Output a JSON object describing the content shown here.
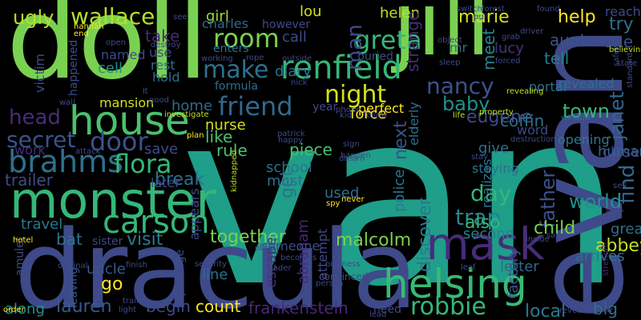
{
  "words": [
    {
      "text": "van",
      "color": "#1f9e89"
    },
    {
      "text": "doll",
      "color": "#7ad151"
    },
    {
      "text": "jill",
      "color": "#7ad151"
    },
    {
      "text": "dracula",
      "color": "#3e4a89"
    },
    {
      "text": "evan",
      "color": "#3e4a89"
    },
    {
      "text": "monster",
      "color": "#35b779"
    },
    {
      "text": "house",
      "color": "#4ac16d"
    },
    {
      "text": "helsing",
      "color": "#38b977"
    },
    {
      "text": "renfield",
      "color": "#35b779"
    },
    {
      "text": "mask",
      "color": "#472c7a"
    },
    {
      "text": "carson",
      "color": "#35b779"
    },
    {
      "text": "brahms",
      "color": "#2d708e"
    },
    {
      "text": "flora",
      "color": "#35b779"
    },
    {
      "text": "door",
      "color": "#3b528b"
    },
    {
      "text": "friend",
      "color": "#31688e"
    },
    {
      "text": "secret",
      "color": "#3b528b"
    },
    {
      "text": "night",
      "color": "#d2e21b"
    },
    {
      "text": "wallace",
      "color": "#b5de2b"
    },
    {
      "text": "room",
      "color": "#7ad151"
    },
    {
      "text": "make",
      "color": "#2d708e"
    },
    {
      "text": "nancy",
      "color": "#3b528b"
    },
    {
      "text": "greta",
      "color": "#35b779"
    },
    {
      "text": "robbie",
      "color": "#35b779"
    },
    {
      "text": "lauren",
      "color": "#38598c"
    },
    {
      "text": "frankenstein",
      "color": "#482878"
    },
    {
      "text": "head",
      "color": "#472c7a"
    },
    {
      "text": "baby",
      "color": "#21918c"
    },
    {
      "text": "eugene",
      "color": "#3e4a89"
    },
    {
      "text": "janet",
      "color": "#31688e"
    },
    {
      "text": "find",
      "color": "#31688e"
    },
    {
      "text": "day",
      "color": "#35b779"
    },
    {
      "text": "trap",
      "color": "#26828e"
    },
    {
      "text": "father",
      "color": "#3b528b"
    },
    {
      "text": "discover",
      "color": "#2a788e"
    },
    {
      "text": "next",
      "color": "#3b528b"
    },
    {
      "text": "ugly",
      "color": "#b5de2b"
    },
    {
      "text": "girl",
      "color": "#a0da39"
    },
    {
      "text": "lou",
      "color": "#d2e21b"
    },
    {
      "text": "helen",
      "color": "#c2df23"
    },
    {
      "text": "charles",
      "color": "#31688e"
    },
    {
      "text": "take",
      "color": "#482878"
    },
    {
      "text": "call",
      "color": "#3e4a89"
    },
    {
      "text": "diary",
      "color": "#2c728e"
    },
    {
      "text": "man",
      "color": "#3e4a89"
    },
    {
      "text": "help",
      "color": "#fde725"
    },
    {
      "text": "aunt",
      "color": "#3b528b"
    },
    {
      "text": "tell",
      "color": "#2a788e"
    },
    {
      "text": "one",
      "color": "#3e4a89"
    },
    {
      "text": "try",
      "color": "#2d708e"
    },
    {
      "text": "marie",
      "color": "#d2e21b"
    },
    {
      "text": "lucy",
      "color": "#46337e"
    },
    {
      "text": "meet",
      "color": "#26828e"
    },
    {
      "text": "strange",
      "color": "#472c7a"
    },
    {
      "text": "mr",
      "color": "#2d708e"
    },
    {
      "text": "force",
      "color": "#fde725"
    },
    {
      "text": "perfect",
      "color": "#fde725"
    },
    {
      "text": "town",
      "color": "#35b779"
    },
    {
      "text": "coffin",
      "color": "#2d708e"
    },
    {
      "text": "word",
      "color": "#3e4a89"
    },
    {
      "text": "human",
      "color": "#31688e"
    },
    {
      "text": "close",
      "color": "#3e4a89"
    },
    {
      "text": "opening",
      "color": "#2a788e"
    },
    {
      "text": "world",
      "color": "#21918c"
    },
    {
      "text": "child",
      "color": "#7ad151"
    },
    {
      "text": "abbey",
      "color": "#c2df23"
    },
    {
      "text": "great",
      "color": "#2d708e"
    },
    {
      "text": "arrives",
      "color": "#2d708e"
    },
    {
      "text": "letter",
      "color": "#31688e"
    },
    {
      "text": "local",
      "color": "#2a788e"
    },
    {
      "text": "big",
      "color": "#2d708e"
    },
    {
      "text": "second",
      "color": "#26828e"
    },
    {
      "text": "also",
      "color": "#35b779"
    },
    {
      "text": "give",
      "color": "#2d708e"
    },
    {
      "text": "nurse",
      "color": "#d2e21b"
    },
    {
      "text": "like",
      "color": "#4ac16d"
    },
    {
      "text": "rule",
      "color": "#4ac16d"
    },
    {
      "text": "piece",
      "color": "#4ac16d"
    },
    {
      "text": "school",
      "color": "#2c728e"
    },
    {
      "text": "must",
      "color": "#2d708e"
    },
    {
      "text": "used",
      "color": "#2d708e"
    },
    {
      "text": "get",
      "color": "#2d708e"
    },
    {
      "text": "break",
      "color": "#2d708e"
    },
    {
      "text": "visit",
      "color": "#2a788e"
    },
    {
      "text": "together",
      "color": "#7ad151"
    },
    {
      "text": "malcolm",
      "color": "#7ad151"
    },
    {
      "text": "abraham",
      "color": "#482878"
    },
    {
      "text": "escape",
      "color": "#46337e"
    },
    {
      "text": "trailer",
      "color": "#3e4a89"
    },
    {
      "text": "bat",
      "color": "#2c728e"
    },
    {
      "text": "travel",
      "color": "#2a788e"
    },
    {
      "text": "uncle",
      "color": "#38598c"
    },
    {
      "text": "go",
      "color": "#fde725"
    },
    {
      "text": "begin",
      "color": "#3e4a89"
    },
    {
      "text": "count",
      "color": "#fde725"
    },
    {
      "text": "along",
      "color": "#21918c"
    },
    {
      "text": "line",
      "color": "#2d708e"
    },
    {
      "text": "save",
      "color": "#3e4a89"
    },
    {
      "text": "home",
      "color": "#31688e"
    },
    {
      "text": "mansion",
      "color": "#d2e21b"
    },
    {
      "text": "hold",
      "color": "#2d708e"
    },
    {
      "text": "use",
      "color": "#3e4a89"
    },
    {
      "text": "rest",
      "color": "#2d708e"
    },
    {
      "text": "cell",
      "color": "#21918c"
    },
    {
      "text": "named",
      "color": "#3e4a89"
    },
    {
      "text": "victim",
      "color": "#3e4a89"
    },
    {
      "text": "happened",
      "color": "#3e4a89"
    },
    {
      "text": "work",
      "color": "#472c7a"
    },
    {
      "text": "later",
      "color": "#3e4a89"
    },
    {
      "text": "however",
      "color": "#3e4a89"
    },
    {
      "text": "enters",
      "color": "#2d708e"
    },
    {
      "text": "buried",
      "color": "#3e4a89"
    },
    {
      "text": "portal",
      "color": "#2d708e"
    },
    {
      "text": "revealed",
      "color": "#2d708e"
    },
    {
      "text": "police",
      "color": "#2a788e"
    },
    {
      "text": "elderly",
      "color": "#2d708e"
    },
    {
      "text": "realizes",
      "color": "#2a788e"
    },
    {
      "text": "factory",
      "color": "#38598c"
    },
    {
      "text": "staying",
      "color": "#2d708e"
    },
    {
      "text": "someone",
      "color": "#3e4a89"
    },
    {
      "text": "attempt",
      "color": "#3e4a89"
    },
    {
      "text": "appears",
      "color": "#3e4a89"
    },
    {
      "text": "passage",
      "color": "#3e4a89"
    },
    {
      "text": "leaving",
      "color": "#38598c"
    },
    {
      "text": "sister",
      "color": "#3e4a89"
    },
    {
      "text": "amulet",
      "color": "#3e4a89"
    },
    {
      "text": "formula",
      "color": "#2d708e"
    },
    {
      "text": "year",
      "color": "#3e4a89"
    },
    {
      "text": "investigate",
      "color": "#c2df23"
    },
    {
      "text": "plan",
      "color": "#fde725"
    },
    {
      "text": "kidnapped",
      "color": "#b5de2b"
    },
    {
      "text": "convinced",
      "color": "#3e4a89"
    },
    {
      "text": "reach",
      "color": "#3e4a89"
    },
    {
      "text": "safety",
      "color": "#3e4a89"
    },
    {
      "text": "sell",
      "color": "#3e4a89"
    },
    {
      "text": "asks",
      "color": "#3e4a89"
    },
    {
      "text": "believing",
      "color": "#c2df23"
    },
    {
      "text": "strength",
      "color": "#472c7a"
    },
    {
      "text": "reveal",
      "color": "#3e4a89"
    },
    {
      "text": "standard",
      "color": "#3e4a89"
    },
    {
      "text": "state",
      "color": "#3e4a89"
    },
    {
      "text": "life",
      "color": "#c2df23"
    },
    {
      "text": "property",
      "color": "#c2df23"
    },
    {
      "text": "revealing",
      "color": "#c2df23"
    },
    {
      "text": "window",
      "color": "#2d708e"
    },
    {
      "text": "destruction",
      "color": "#3e4a89"
    },
    {
      "text": "driver",
      "color": "#3e4a89"
    },
    {
      "text": "found",
      "color": "#3e4a89"
    },
    {
      "text": "forest",
      "color": "#3e4a89"
    },
    {
      "text": "switch",
      "color": "#3e4a89"
    },
    {
      "text": "pull",
      "color": "#3e4a89"
    },
    {
      "text": "object",
      "color": "#3e4a89"
    },
    {
      "text": "grab",
      "color": "#3e4a89"
    },
    {
      "text": "forced",
      "color": "#3e4a89"
    },
    {
      "text": "sleep",
      "color": "#3e4a89"
    },
    {
      "text": "outside",
      "color": "#3e4a89"
    },
    {
      "text": "rope",
      "color": "#3e4a89"
    },
    {
      "text": "working",
      "color": "#3e4a89"
    },
    {
      "text": "nick",
      "color": "#3e4a89"
    },
    {
      "text": "phone",
      "color": "#3e4a89"
    },
    {
      "text": "kid",
      "color": "#3e4a89"
    },
    {
      "text": "follow",
      "color": "#3e4a89"
    },
    {
      "text": "patrick",
      "color": "#3e4a89"
    },
    {
      "text": "happy",
      "color": "#3e4a89"
    },
    {
      "text": "sign",
      "color": "#3e4a89"
    },
    {
      "text": "dream",
      "color": "#3e4a89"
    },
    {
      "text": "happen",
      "color": "#3e4a89"
    },
    {
      "text": "stay",
      "color": "#3e4a89"
    },
    {
      "text": "never",
      "color": "#fde725"
    },
    {
      "text": "spy",
      "color": "#fde725"
    },
    {
      "text": "need",
      "color": "#3e4a89"
    },
    {
      "text": "lead",
      "color": "#3e4a89"
    },
    {
      "text": "person",
      "color": "#3e4a89"
    },
    {
      "text": "business",
      "color": "#3e4a89"
    },
    {
      "text": "leaf",
      "color": "#3e4a89"
    },
    {
      "text": "security",
      "color": "#3e4a89"
    },
    {
      "text": "finish",
      "color": "#3e4a89"
    },
    {
      "text": "train",
      "color": "#3e4a89"
    },
    {
      "text": "light",
      "color": "#3e4a89"
    },
    {
      "text": "hotel",
      "color": "#fde725"
    },
    {
      "text": "order",
      "color": "#fde725"
    },
    {
      "text": "original",
      "color": "#3e4a89"
    },
    {
      "text": "wall",
      "color": "#3e4a89"
    },
    {
      "text": "attack",
      "color": "#3e4a89"
    },
    {
      "text": "destroy",
      "color": "#3e4a89"
    },
    {
      "text": "good",
      "color": "#3e4a89"
    },
    {
      "text": "lt",
      "color": "#3e4a89"
    },
    {
      "text": "see",
      "color": "#3e4a89"
    },
    {
      "text": "hannah",
      "color": "#fde725"
    },
    {
      "text": "end",
      "color": "#fde725"
    },
    {
      "text": "open",
      "color": "#3e4a89"
    },
    {
      "text": "becomes",
      "color": "#3e4a89"
    },
    {
      "text": "old",
      "color": "#3e4a89"
    },
    {
      "text": "leader",
      "color": "#3e4a89"
    },
    {
      "text": "inside",
      "color": "#3e4a89"
    },
    {
      "text": "say",
      "color": "#3e4a89"
    },
    {
      "text": "new",
      "color": "#3e4a89"
    }
  ]
}
